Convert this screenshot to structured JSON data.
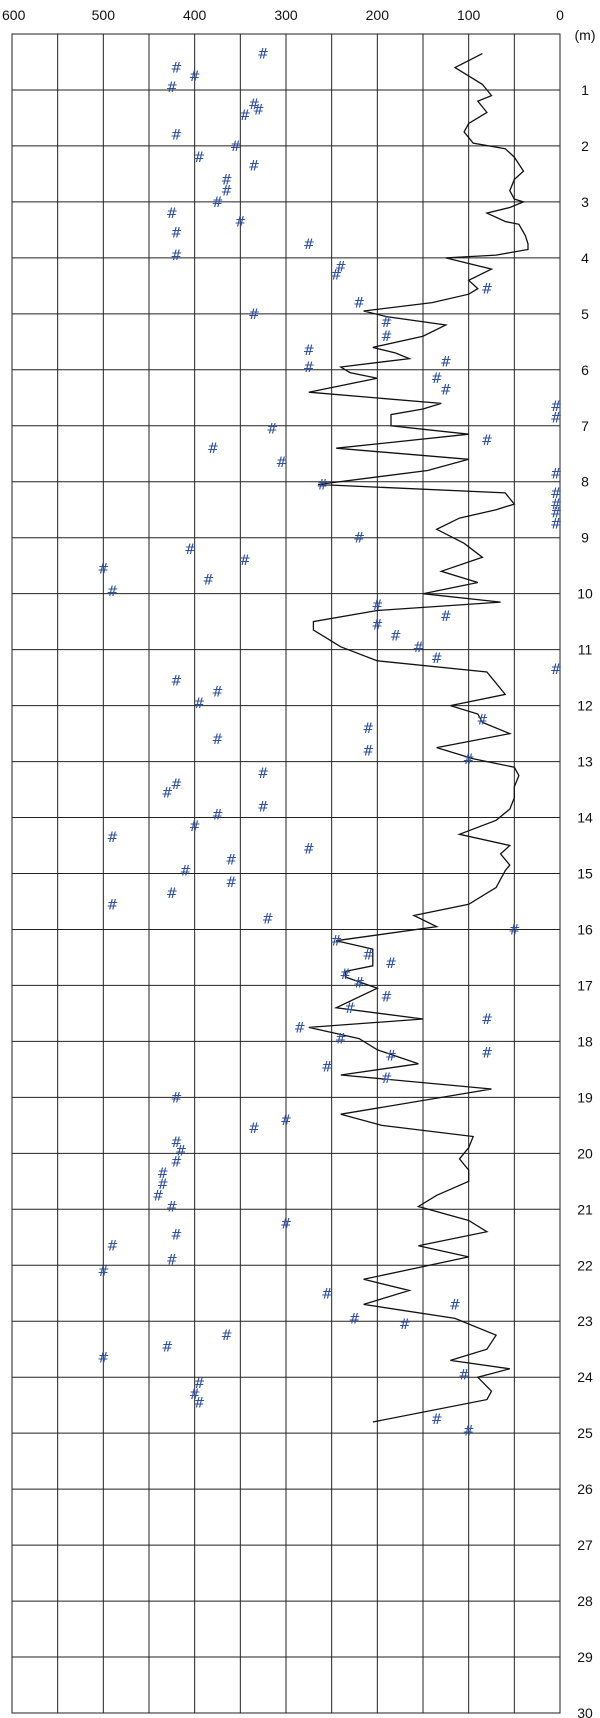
{
  "chart_data": {
    "type": "scatter",
    "x_axis": {
      "position": "top",
      "reversed": true,
      "range": [
        600,
        0
      ],
      "ticks": [
        "600",
        "500",
        "400",
        "300",
        "200",
        "100",
        "0"
      ],
      "tick_values": [
        600,
        500,
        400,
        300,
        200,
        100,
        0
      ]
    },
    "y_axis": {
      "position": "right",
      "unit_label": "(m)",
      "range": [
        0,
        30
      ],
      "ticks": [
        "1",
        "2",
        "3",
        "4",
        "5",
        "6",
        "7",
        "8",
        "9",
        "10",
        "11",
        "12",
        "13",
        "14",
        "15",
        "16",
        "17",
        "18",
        "19",
        "20",
        "21",
        "22",
        "23",
        "24",
        "25",
        "26",
        "27",
        "28",
        "29",
        "30"
      ],
      "tick_values": [
        1,
        2,
        3,
        4,
        5,
        6,
        7,
        8,
        9,
        10,
        11,
        12,
        13,
        14,
        15,
        16,
        17,
        18,
        19,
        20,
        21,
        22,
        23,
        24,
        25,
        26,
        27,
        28,
        29,
        30
      ]
    },
    "grid": true,
    "marker_symbol": "#",
    "marker_color": "#2f52a3",
    "line_color": "#111111",
    "series": [
      {
        "type": "line",
        "points": [
          [
            85,
            0.35
          ],
          [
            115,
            0.6
          ],
          [
            85,
            0.9
          ],
          [
            75,
            1.1
          ],
          [
            90,
            1.2
          ],
          [
            80,
            1.4
          ],
          [
            100,
            1.6
          ],
          [
            105,
            1.75
          ],
          [
            95,
            1.95
          ],
          [
            60,
            2.05
          ],
          [
            50,
            2.2
          ],
          [
            40,
            2.45
          ],
          [
            50,
            2.6
          ],
          [
            55,
            2.8
          ],
          [
            50,
            2.95
          ],
          [
            40,
            3.0
          ],
          [
            55,
            3.1
          ],
          [
            80,
            3.2
          ],
          [
            60,
            3.35
          ],
          [
            45,
            3.4
          ],
          [
            38,
            3.6
          ],
          [
            35,
            3.75
          ],
          [
            35,
            3.85
          ],
          [
            70,
            3.95
          ],
          [
            125,
            4.0
          ],
          [
            75,
            4.2
          ],
          [
            100,
            4.4
          ],
          [
            90,
            4.55
          ],
          [
            100,
            4.65
          ],
          [
            140,
            4.8
          ],
          [
            215,
            4.95
          ],
          [
            190,
            5.05
          ],
          [
            125,
            5.2
          ],
          [
            150,
            5.4
          ],
          [
            205,
            5.6
          ],
          [
            180,
            5.7
          ],
          [
            165,
            5.8
          ],
          [
            240,
            5.95
          ],
          [
            230,
            6.05
          ],
          [
            200,
            6.15
          ],
          [
            275,
            6.4
          ],
          [
            130,
            6.6
          ],
          [
            150,
            6.7
          ],
          [
            185,
            6.8
          ],
          [
            185,
            7.0
          ],
          [
            100,
            7.15
          ],
          [
            245,
            7.4
          ],
          [
            100,
            7.6
          ],
          [
            145,
            7.8
          ],
          [
            265,
            8.05
          ],
          [
            60,
            8.2
          ],
          [
            50,
            8.4
          ],
          [
            70,
            8.5
          ],
          [
            110,
            8.65
          ],
          [
            135,
            8.85
          ],
          [
            105,
            9.1
          ],
          [
            85,
            9.35
          ],
          [
            130,
            9.6
          ],
          [
            90,
            9.8
          ],
          [
            150,
            10.0
          ],
          [
            65,
            10.15
          ],
          [
            200,
            10.3
          ],
          [
            270,
            10.5
          ],
          [
            270,
            10.65
          ],
          [
            240,
            10.95
          ],
          [
            200,
            11.2
          ],
          [
            80,
            11.4
          ],
          [
            70,
            11.6
          ],
          [
            60,
            11.8
          ],
          [
            120,
            12.0
          ],
          [
            90,
            12.15
          ],
          [
            85,
            12.3
          ],
          [
            55,
            12.5
          ],
          [
            135,
            12.75
          ],
          [
            95,
            12.95
          ],
          [
            50,
            13.1
          ],
          [
            45,
            13.25
          ],
          [
            50,
            13.45
          ],
          [
            50,
            13.65
          ],
          [
            55,
            13.85
          ],
          [
            70,
            14.05
          ],
          [
            110,
            14.3
          ],
          [
            55,
            14.5
          ],
          [
            65,
            14.65
          ],
          [
            55,
            14.85
          ],
          [
            60,
            14.95
          ],
          [
            70,
            15.25
          ],
          [
            100,
            15.55
          ],
          [
            160,
            15.75
          ],
          [
            135,
            15.95
          ],
          [
            245,
            16.2
          ],
          [
            205,
            16.35
          ],
          [
            205,
            16.65
          ],
          [
            235,
            16.75
          ],
          [
            235,
            16.85
          ],
          [
            200,
            17.05
          ],
          [
            245,
            17.4
          ],
          [
            150,
            17.6
          ],
          [
            275,
            17.75
          ],
          [
            220,
            17.95
          ],
          [
            200,
            18.15
          ],
          [
            155,
            18.4
          ],
          [
            240,
            18.6
          ],
          [
            75,
            18.85
          ],
          [
            240,
            19.3
          ],
          [
            195,
            19.5
          ],
          [
            95,
            19.7
          ],
          [
            100,
            19.9
          ],
          [
            110,
            20.1
          ],
          [
            100,
            20.3
          ],
          [
            100,
            20.5
          ],
          [
            135,
            20.75
          ],
          [
            155,
            20.95
          ],
          [
            100,
            21.2
          ],
          [
            80,
            21.4
          ],
          [
            155,
            21.65
          ],
          [
            100,
            21.85
          ],
          [
            215,
            22.25
          ],
          [
            165,
            22.45
          ],
          [
            215,
            22.7
          ],
          [
            115,
            22.95
          ],
          [
            70,
            23.25
          ],
          [
            80,
            23.5
          ],
          [
            120,
            23.7
          ],
          [
            55,
            23.85
          ],
          [
            90,
            24.0
          ],
          [
            75,
            24.25
          ],
          [
            80,
            24.4
          ],
          [
            205,
            24.8
          ]
        ]
      },
      {
        "type": "scatter",
        "points": [
          [
            325,
            0.35
          ],
          [
            420,
            0.6
          ],
          [
            400,
            0.75
          ],
          [
            425,
            0.95
          ],
          [
            335,
            1.25
          ],
          [
            330,
            1.35
          ],
          [
            345,
            1.45
          ],
          [
            420,
            1.8
          ],
          [
            355,
            2.0
          ],
          [
            395,
            2.2
          ],
          [
            335,
            2.35
          ],
          [
            365,
            2.6
          ],
          [
            365,
            2.8
          ],
          [
            375,
            3.0
          ],
          [
            425,
            3.2
          ],
          [
            350,
            3.35
          ],
          [
            420,
            3.55
          ],
          [
            275,
            3.75
          ],
          [
            420,
            3.95
          ],
          [
            240,
            4.15
          ],
          [
            245,
            4.3
          ],
          [
            80,
            4.55
          ],
          [
            220,
            4.8
          ],
          [
            335,
            5.0
          ],
          [
            190,
            5.15
          ],
          [
            190,
            5.4
          ],
          [
            275,
            5.65
          ],
          [
            125,
            5.85
          ],
          [
            275,
            5.95
          ],
          [
            135,
            6.15
          ],
          [
            125,
            6.35
          ],
          [
            0,
            6.65
          ],
          [
            0,
            6.85
          ],
          [
            315,
            7.05
          ],
          [
            80,
            7.25
          ],
          [
            380,
            7.4
          ],
          [
            305,
            7.65
          ],
          [
            0,
            7.85
          ],
          [
            260,
            8.05
          ],
          [
            0,
            8.2
          ],
          [
            0,
            8.4
          ],
          [
            0,
            8.55
          ],
          [
            0,
            8.75
          ],
          [
            220,
            9.0
          ],
          [
            405,
            9.2
          ],
          [
            345,
            9.4
          ],
          [
            500,
            9.55
          ],
          [
            385,
            9.75
          ],
          [
            490,
            9.95
          ],
          [
            200,
            10.2
          ],
          [
            125,
            10.4
          ],
          [
            200,
            10.55
          ],
          [
            180,
            10.75
          ],
          [
            155,
            10.95
          ],
          [
            135,
            11.15
          ],
          [
            0,
            11.35
          ],
          [
            420,
            11.55
          ],
          [
            375,
            11.75
          ],
          [
            395,
            11.95
          ],
          [
            85,
            12.25
          ],
          [
            210,
            12.4
          ],
          [
            375,
            12.6
          ],
          [
            210,
            12.8
          ],
          [
            100,
            12.95
          ],
          [
            325,
            13.2
          ],
          [
            420,
            13.4
          ],
          [
            430,
            13.55
          ],
          [
            325,
            13.8
          ],
          [
            375,
            13.95
          ],
          [
            400,
            14.15
          ],
          [
            490,
            14.35
          ],
          [
            275,
            14.55
          ],
          [
            360,
            14.75
          ],
          [
            410,
            14.95
          ],
          [
            360,
            15.15
          ],
          [
            425,
            15.35
          ],
          [
            490,
            15.55
          ],
          [
            320,
            15.8
          ],
          [
            50,
            16.0
          ],
          [
            245,
            16.2
          ],
          [
            210,
            16.45
          ],
          [
            185,
            16.6
          ],
          [
            235,
            16.8
          ],
          [
            220,
            16.95
          ],
          [
            190,
            17.2
          ],
          [
            230,
            17.4
          ],
          [
            80,
            17.6
          ],
          [
            285,
            17.75
          ],
          [
            240,
            17.95
          ],
          [
            80,
            18.2
          ],
          [
            185,
            18.25
          ],
          [
            255,
            18.45
          ],
          [
            190,
            18.65
          ],
          [
            420,
            19.0
          ],
          [
            300,
            19.4
          ],
          [
            335,
            19.55
          ],
          [
            420,
            19.8
          ],
          [
            415,
            19.95
          ],
          [
            420,
            20.15
          ],
          [
            435,
            20.35
          ],
          [
            435,
            20.55
          ],
          [
            440,
            20.75
          ],
          [
            425,
            20.95
          ],
          [
            300,
            21.25
          ],
          [
            420,
            21.45
          ],
          [
            490,
            21.65
          ],
          [
            425,
            21.9
          ],
          [
            500,
            22.1
          ],
          [
            255,
            22.5
          ],
          [
            115,
            22.7
          ],
          [
            225,
            22.95
          ],
          [
            170,
            23.05
          ],
          [
            365,
            23.25
          ],
          [
            430,
            23.45
          ],
          [
            500,
            23.65
          ],
          [
            105,
            23.95
          ],
          [
            395,
            24.1
          ],
          [
            400,
            24.3
          ],
          [
            395,
            24.45
          ],
          [
            135,
            24.75
          ],
          [
            100,
            24.95
          ]
        ]
      }
    ]
  }
}
